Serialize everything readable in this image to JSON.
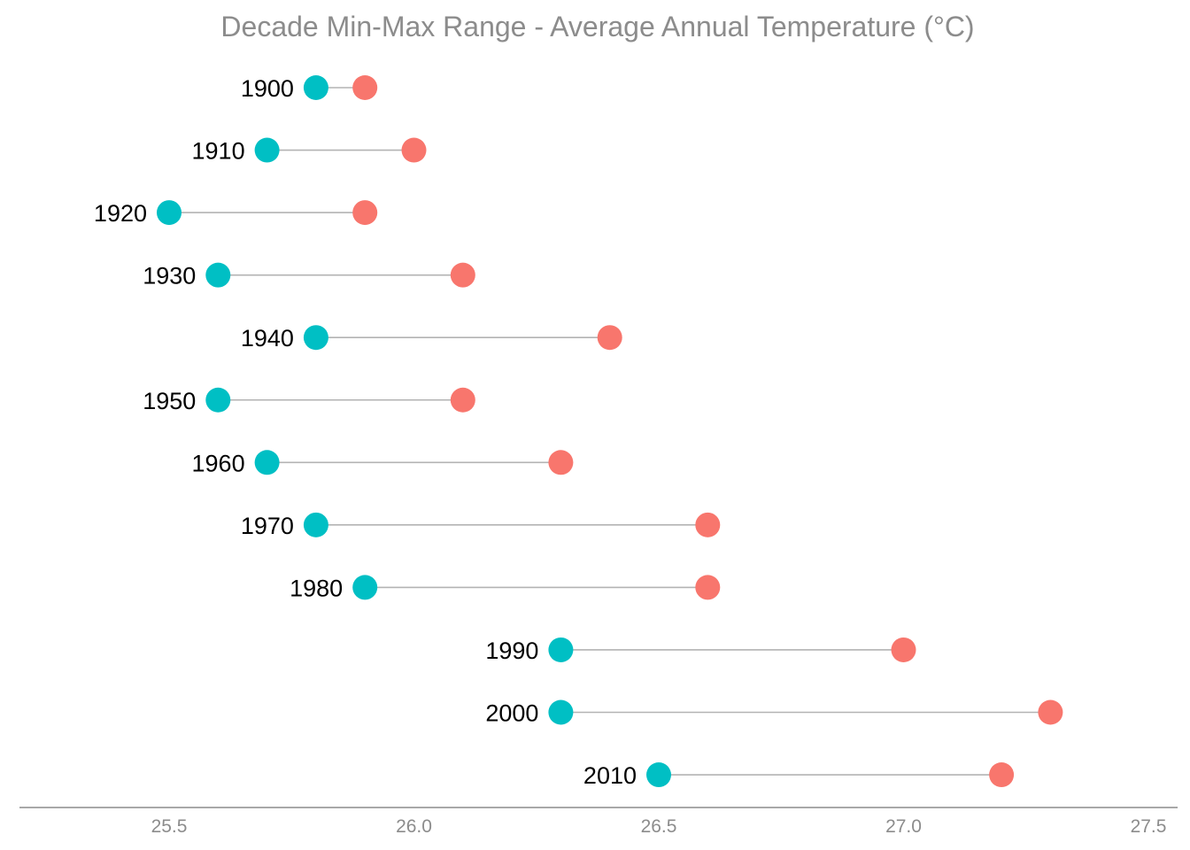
{
  "chart_data": {
    "type": "dumbbell",
    "title": "Decade Min-Max Range - Average Annual Temperature (°C)",
    "xlabel": "",
    "ylabel": "",
    "xlim": [
      25.2,
      27.55
    ],
    "x_ticks": [
      25.5,
      26.0,
      26.5,
      27.0,
      27.5
    ],
    "x_tick_labels": [
      "25.5",
      "26.0",
      "26.5",
      "27.0",
      "27.5"
    ],
    "grid": false,
    "legend": "none",
    "categories": [
      "1900",
      "1910",
      "1920",
      "1930",
      "1940",
      "1950",
      "1960",
      "1970",
      "1980",
      "1990",
      "2000",
      "2010"
    ],
    "series": [
      {
        "values": [
          25.8,
          25.7,
          25.5,
          25.6,
          25.8,
          25.6,
          25.7,
          25.8,
          25.9,
          26.3,
          26.3,
          26.5
        ],
        "color": "#00bfc4"
      },
      {
        "values": [
          25.9,
          26.0,
          25.9,
          26.1,
          26.4,
          26.1,
          26.3,
          26.6,
          26.6,
          27.0,
          27.3,
          27.2
        ],
        "color": "#f8766d"
      }
    ],
    "range_line_color": "#b3b3b3"
  }
}
